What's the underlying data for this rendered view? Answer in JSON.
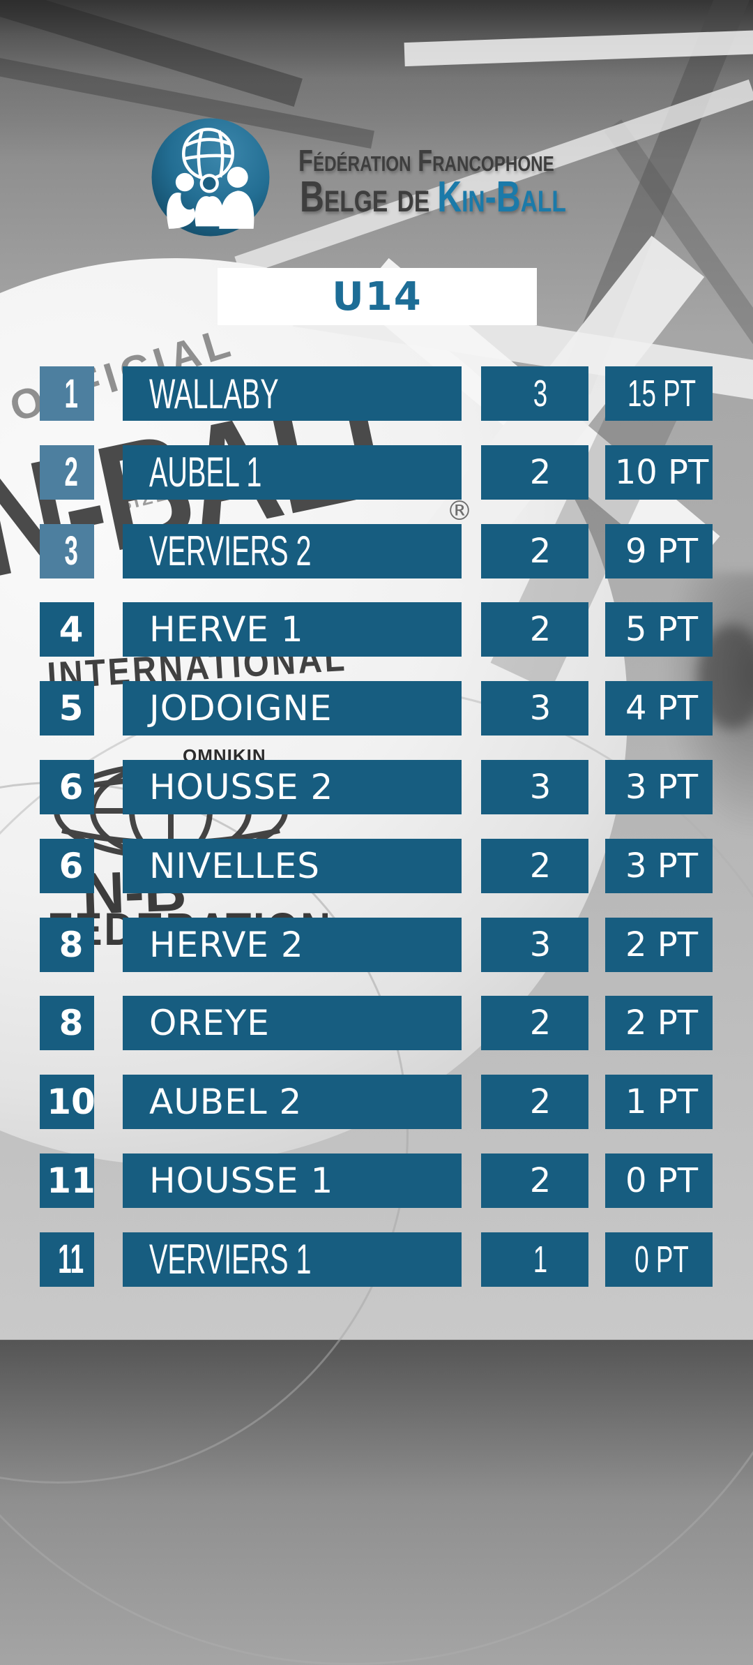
{
  "header": {
    "logo": "kin-ball-federation-logo",
    "org_name_line1": "Fédération Francophone",
    "org_name_line2_prefix": "Belge de",
    "org_name_line2_brand": "Kin-Ball"
  },
  "banner": {
    "category": "U14"
  },
  "standings": {
    "columns": [
      "rank",
      "team",
      "games_played",
      "points"
    ],
    "rows": [
      {
        "rank": "1",
        "team": "WALLABY",
        "games": "3",
        "points": "15 PT",
        "rank_box": "light",
        "name_font": "cond",
        "num_font": "cond"
      },
      {
        "rank": "2",
        "team": "AUBEL 1",
        "games": "2",
        "points": "10 PT",
        "rank_box": "light",
        "name_font": "cond",
        "num_font": "geo"
      },
      {
        "rank": "3",
        "team": "VERVIERS 2",
        "games": "2",
        "points": "9 PT",
        "rank_box": "light",
        "name_font": "cond",
        "num_font": "geo"
      },
      {
        "rank": "4",
        "team": "HERVE 1",
        "games": "2",
        "points": "5 PT",
        "rank_box": "dark",
        "name_font": "geo",
        "num_font": "geo"
      },
      {
        "rank": "5",
        "team": "JODOIGNE",
        "games": "3",
        "points": "4 PT",
        "rank_box": "dark",
        "name_font": "geo",
        "num_font": "geo"
      },
      {
        "rank": "6",
        "team": "HOUSSE 2",
        "games": "3",
        "points": "3 PT",
        "rank_box": "dark",
        "name_font": "geo",
        "num_font": "geo"
      },
      {
        "rank": "6",
        "team": "NIVELLES",
        "games": "2",
        "points": "3 PT",
        "rank_box": "dark",
        "name_font": "geo",
        "num_font": "geo"
      },
      {
        "rank": "8",
        "team": "HERVE 2",
        "games": "3",
        "points": "2 PT",
        "rank_box": "dark",
        "name_font": "geo",
        "num_font": "geo"
      },
      {
        "rank": "8",
        "team": "OREYE",
        "games": "2",
        "points": "2 PT",
        "rank_box": "dark",
        "name_font": "geo",
        "num_font": "geo"
      },
      {
        "rank": "10",
        "team": "AUBEL 2",
        "games": "2",
        "points": "1 PT",
        "rank_box": "dark",
        "name_font": "geo",
        "num_font": "geo"
      },
      {
        "rank": "11",
        "team": "HOUSSE 1",
        "games": "2",
        "points": "0 PT",
        "rank_box": "dark",
        "name_font": "geo",
        "num_font": "geo"
      },
      {
        "rank": "11",
        "team": "VERVIERS 1",
        "games": "1",
        "points": "0 PT",
        "rank_box": "dark",
        "name_font": "cond",
        "num_font": "cond"
      }
    ]
  },
  "background": {
    "ball_markings": {
      "official": "OFFICIAL",
      "size": "SIZE",
      "brand_fragment": "N-BALL",
      "registered": "®",
      "international": "INTERNATIONAL",
      "omnikin": "OMNIKIN",
      "federation": "FEDERATION",
      "brand_fragment2": "N-B"
    }
  },
  "colors": {
    "bar_dark": "#175d80",
    "rank_light": "#4d7f9f",
    "accent_teal": "#1b7aa9",
    "banner_text": "#1d6d96"
  },
  "layout": {
    "row_top_start": 525,
    "row_pitch": 112.8
  }
}
